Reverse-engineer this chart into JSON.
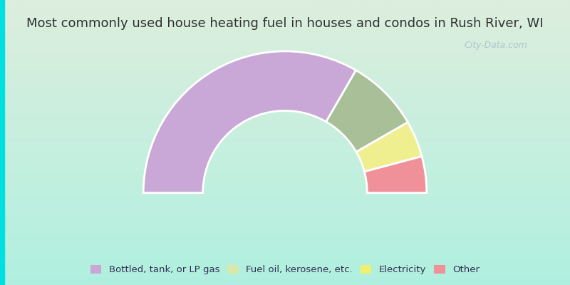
{
  "title": "Most commonly used house heating fuel in houses and condos in Rush River, WI",
  "segments": [
    {
      "label": "Bottled, tank, or LP gas",
      "value": 66.7,
      "color": "#c9a8d8"
    },
    {
      "label": "Fuel oil, kerosene, etc.",
      "value": 16.7,
      "color": "#a8bf98"
    },
    {
      "label": "Electricity",
      "value": 8.3,
      "color": "#f0ef90"
    },
    {
      "label": "Other",
      "value": 8.3,
      "color": "#f09098"
    }
  ],
  "legend_items": [
    {
      "label": "Bottled, tank, or LP gas",
      "color": "#c9a8d8"
    },
    {
      "label": "Fuel oil, kerosene, etc.",
      "color": "#d8e8a8"
    },
    {
      "label": "Electricity",
      "color": "#f0ef70"
    },
    {
      "label": "Other",
      "color": "#f09098"
    }
  ],
  "bg_top": "#ddeedd",
  "bg_bottom": "#c8f0e8",
  "border_color": "#00e0e0",
  "title_fontsize": 13,
  "title_color": "#303030",
  "legend_fontsize": 9.5,
  "legend_color": "#303050",
  "watermark": "City-Data.com",
  "watermark_color": "#a0b8c8"
}
